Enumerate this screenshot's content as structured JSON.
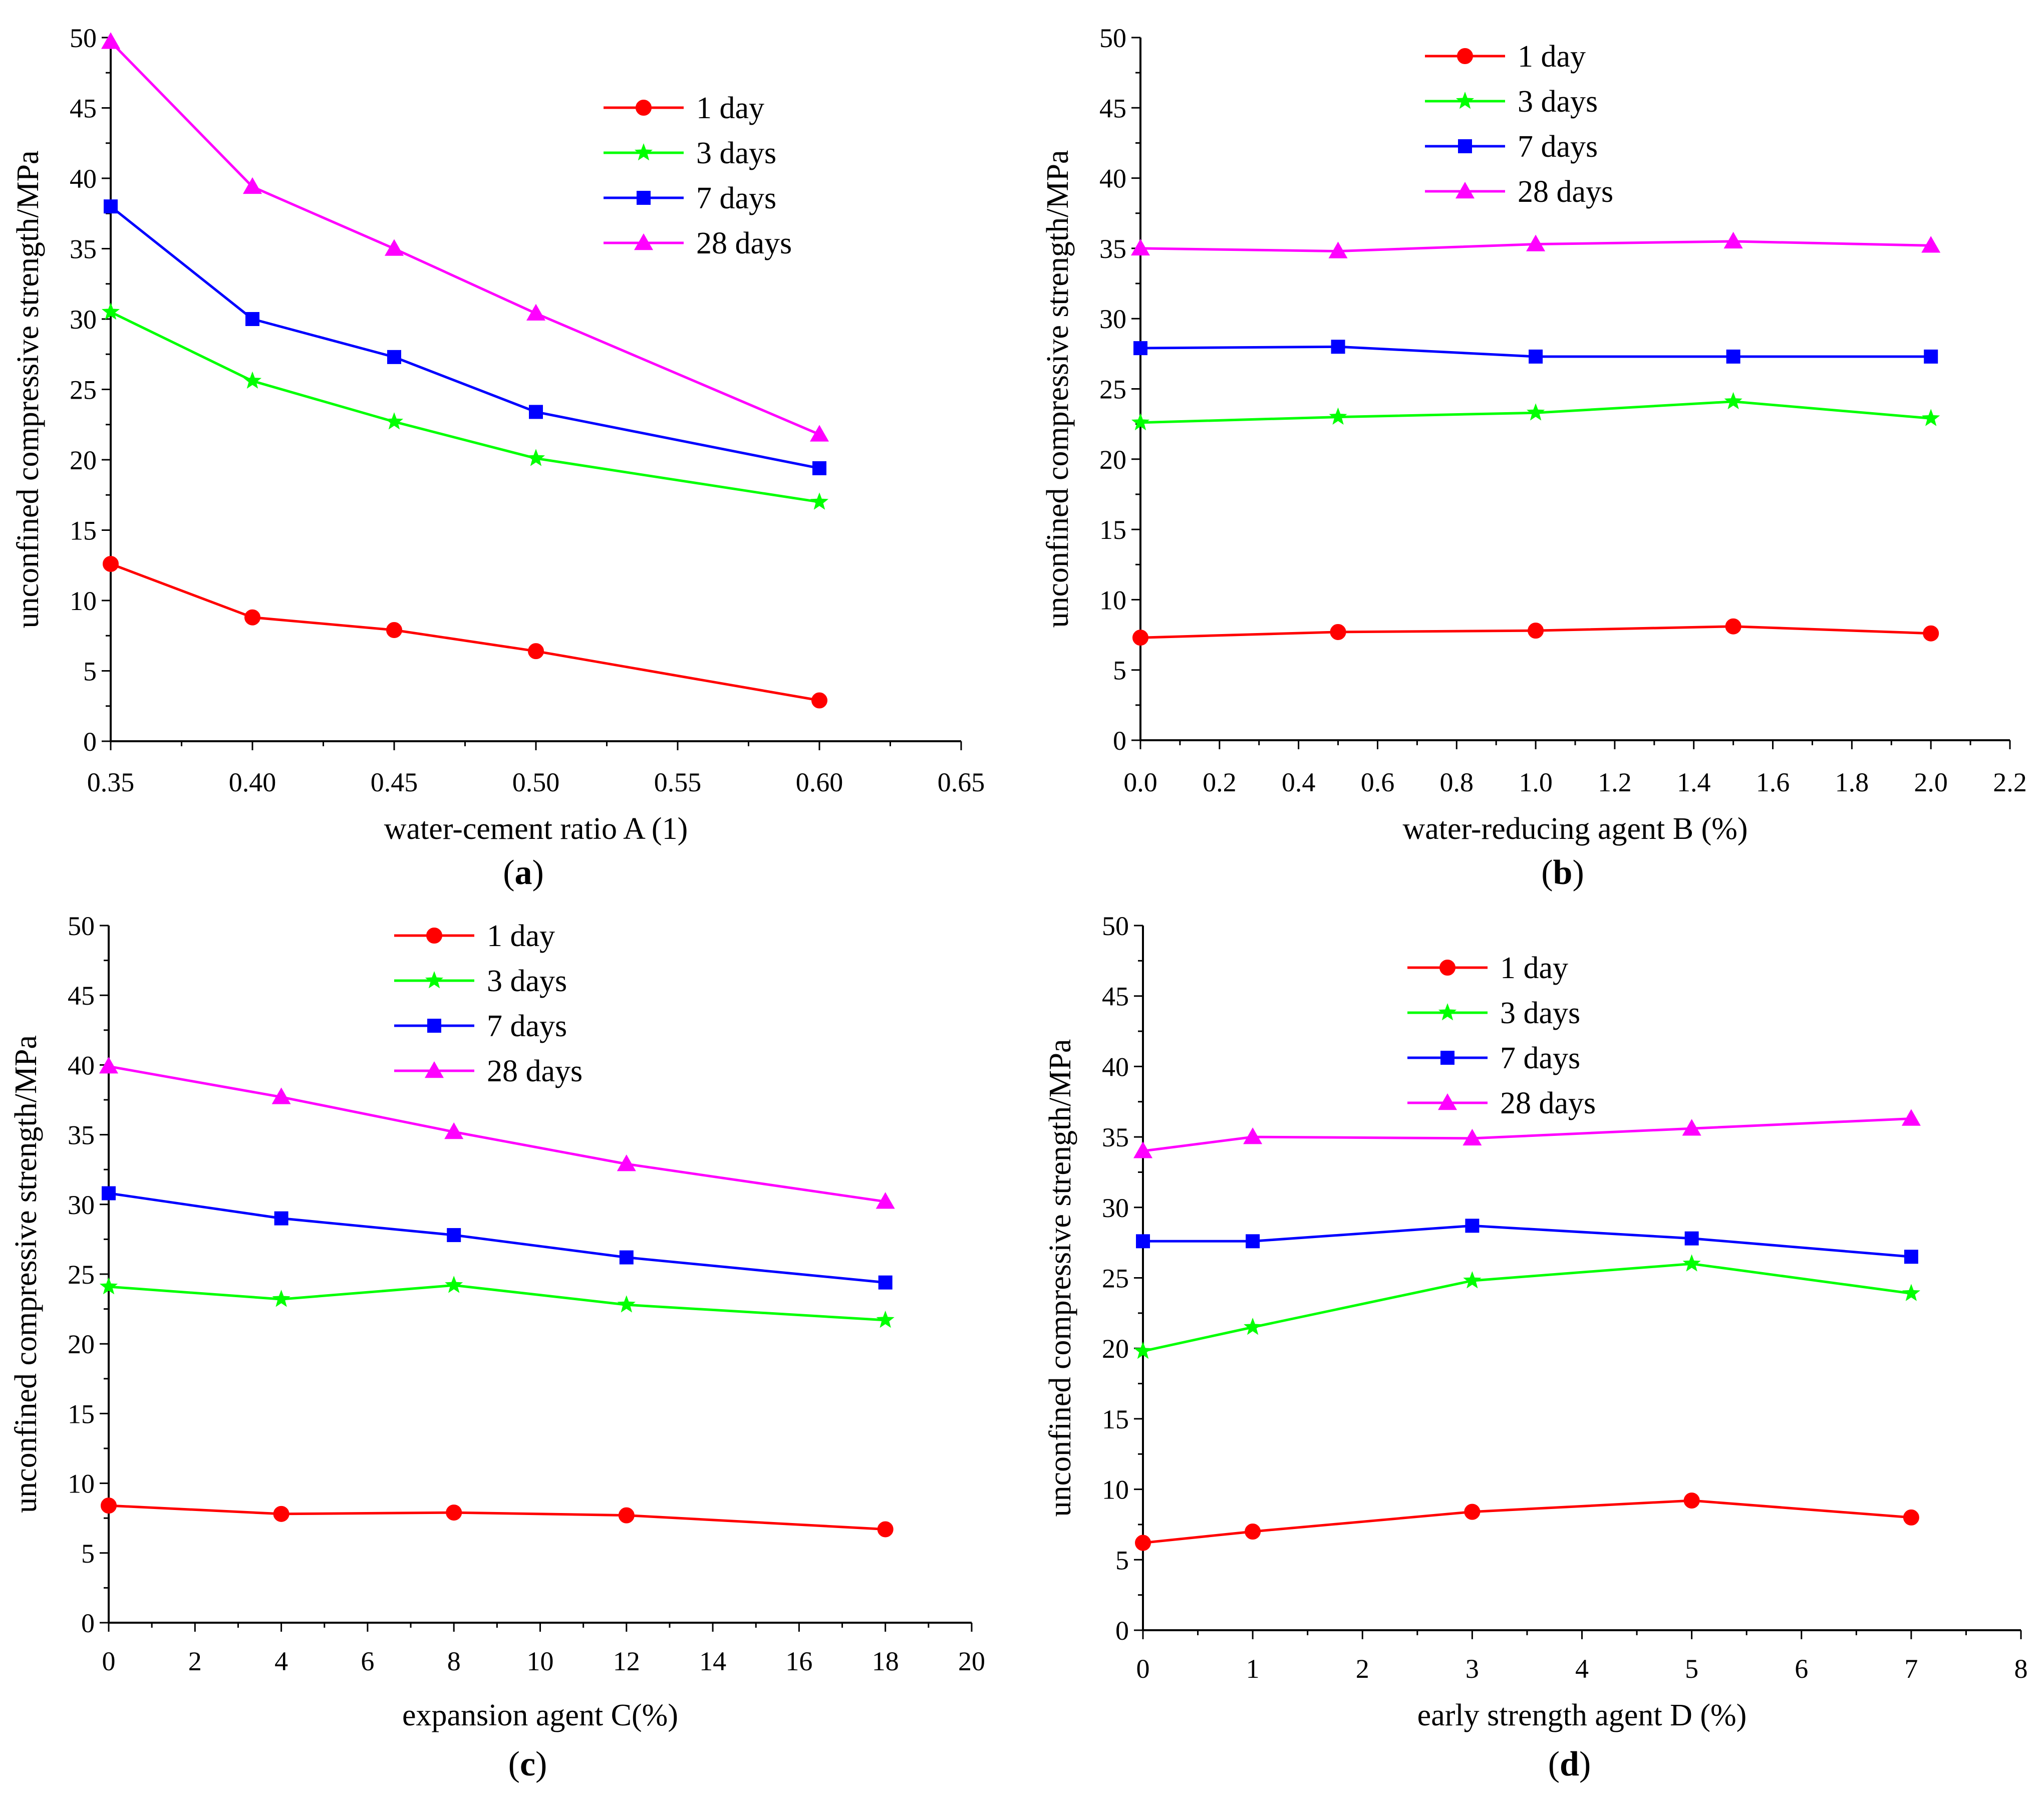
{
  "figure": {
    "series_colors": {
      "1 day": "#ff0000",
      "3 days": "#00ff00",
      "7 days": "#0000ff",
      "28 days": "#ff00ff"
    },
    "series_markers": {
      "1 day": "circle",
      "3 days": "star",
      "7 days": "square",
      "28 days": "triangle"
    }
  },
  "chart_data": [
    {
      "id": "a",
      "panel_label": "a",
      "type": "line",
      "title": "",
      "xlabel": "water-cement ratio A (1)",
      "ylabel": "unconfined compressive strength/MPa",
      "xlim": [
        0.35,
        0.65
      ],
      "ylim": [
        0,
        50
      ],
      "xticks": [
        0.35,
        0.4,
        0.45,
        0.5,
        0.55,
        0.6,
        0.65
      ],
      "xtick_labels": [
        "0.35",
        "0.40",
        "0.45",
        "0.50",
        "0.55",
        "0.60",
        "0.65"
      ],
      "yticks": [
        0,
        5,
        10,
        15,
        20,
        25,
        30,
        35,
        40,
        45,
        50
      ],
      "ytick_labels": [
        "0",
        "5",
        "10",
        "15",
        "20",
        "25",
        "30",
        "35",
        "40",
        "45",
        "50"
      ],
      "grid": false,
      "legend_position": "top-right",
      "x": [
        0.35,
        0.4,
        0.45,
        0.5,
        0.6
      ],
      "series": [
        {
          "name": "1 day",
          "values": [
            12.6,
            8.8,
            7.9,
            6.4,
            2.9
          ]
        },
        {
          "name": "3 days",
          "values": [
            30.5,
            25.6,
            22.7,
            20.1,
            17.0
          ]
        },
        {
          "name": "7 days",
          "values": [
            38.0,
            30.0,
            27.3,
            23.4,
            19.4
          ]
        },
        {
          "name": "28 days",
          "values": [
            49.7,
            39.4,
            35.0,
            30.4,
            21.8
          ]
        }
      ]
    },
    {
      "id": "b",
      "panel_label": "b",
      "type": "line",
      "title": "",
      "xlabel": "water-reducing agent B (%)",
      "ylabel": "unconfined compressive strength/MPa",
      "xlim": [
        0,
        2.2
      ],
      "ylim": [
        0,
        50
      ],
      "xticks": [
        0,
        0.2,
        0.4,
        0.6,
        0.8,
        1.0,
        1.2,
        1.4,
        1.6,
        1.8,
        2.0,
        2.2
      ],
      "xtick_labels": [
        "0.0",
        "0.2",
        "0.4",
        "0.6",
        "0.8",
        "1.0",
        "1.2",
        "1.4",
        "1.6",
        "1.8",
        "2.0",
        "2.2"
      ],
      "yticks": [
        0,
        5,
        10,
        15,
        20,
        25,
        30,
        35,
        40,
        45,
        50
      ],
      "ytick_labels": [
        "0",
        "5",
        "10",
        "15",
        "20",
        "25",
        "30",
        "35",
        "40",
        "45",
        "50"
      ],
      "grid": false,
      "legend_position": "top-center",
      "x": [
        0,
        0.5,
        1.0,
        1.5,
        2.0
      ],
      "series": [
        {
          "name": "1 day",
          "values": [
            7.3,
            7.7,
            7.8,
            8.1,
            7.6
          ]
        },
        {
          "name": "3 days",
          "values": [
            22.6,
            23.0,
            23.3,
            24.1,
            22.9
          ]
        },
        {
          "name": "7 days",
          "values": [
            27.9,
            28.0,
            27.3,
            27.3,
            27.3
          ]
        },
        {
          "name": "28 days",
          "values": [
            35.0,
            34.8,
            35.3,
            35.5,
            35.2
          ]
        }
      ]
    },
    {
      "id": "c",
      "panel_label": "c",
      "type": "line",
      "title": "",
      "xlabel": "expansion agent C(%)",
      "ylabel": "unconfined compressive strength/MPa",
      "xlim": [
        0,
        20
      ],
      "ylim": [
        0,
        50
      ],
      "xticks": [
        0,
        2,
        4,
        6,
        8,
        10,
        12,
        14,
        16,
        18,
        20
      ],
      "xtick_labels": [
        "0",
        "2",
        "4",
        "6",
        "8",
        "10",
        "12",
        "14",
        "16",
        "18",
        "20"
      ],
      "yticks": [
        0,
        5,
        10,
        15,
        20,
        25,
        30,
        35,
        40,
        45,
        50
      ],
      "ytick_labels": [
        "0",
        "5",
        "10",
        "15",
        "20",
        "25",
        "30",
        "35",
        "40",
        "45",
        "50"
      ],
      "grid": false,
      "legend_position": "top-center",
      "x": [
        0,
        4,
        8,
        12,
        18
      ],
      "series": [
        {
          "name": "1 day",
          "values": [
            8.4,
            7.8,
            7.9,
            7.7,
            6.7
          ]
        },
        {
          "name": "3 days",
          "values": [
            24.1,
            23.2,
            24.2,
            22.8,
            21.7
          ]
        },
        {
          "name": "7 days",
          "values": [
            30.8,
            29.0,
            27.8,
            26.2,
            24.4
          ]
        },
        {
          "name": "28 days",
          "values": [
            39.9,
            37.7,
            35.2,
            32.9,
            30.2
          ]
        }
      ]
    },
    {
      "id": "d",
      "panel_label": "d",
      "type": "line",
      "title": "",
      "xlabel": "early strength agent D (%)",
      "ylabel": "unconfined compressive strength/MPa",
      "xlim": [
        0,
        8
      ],
      "ylim": [
        0,
        50
      ],
      "xticks": [
        0,
        1,
        2,
        3,
        4,
        5,
        6,
        7,
        8
      ],
      "xtick_labels": [
        "0",
        "1",
        "2",
        "3",
        "4",
        "5",
        "6",
        "7",
        "8"
      ],
      "yticks": [
        0,
        5,
        10,
        15,
        20,
        25,
        30,
        35,
        40,
        45,
        50
      ],
      "ytick_labels": [
        "0",
        "5",
        "10",
        "15",
        "20",
        "25",
        "30",
        "35",
        "40",
        "45",
        "50"
      ],
      "grid": false,
      "legend_position": "top-center",
      "x": [
        0,
        1,
        3,
        5,
        7
      ],
      "series": [
        {
          "name": "1 day",
          "values": [
            6.2,
            7.0,
            8.4,
            9.2,
            8.0
          ]
        },
        {
          "name": "3 days",
          "values": [
            19.8,
            21.5,
            24.8,
            26.0,
            23.9
          ]
        },
        {
          "name": "7 days",
          "values": [
            27.6,
            27.6,
            28.7,
            27.8,
            26.5
          ]
        },
        {
          "name": "28 days",
          "values": [
            34.0,
            35.0,
            34.9,
            35.6,
            36.3
          ]
        }
      ]
    }
  ]
}
